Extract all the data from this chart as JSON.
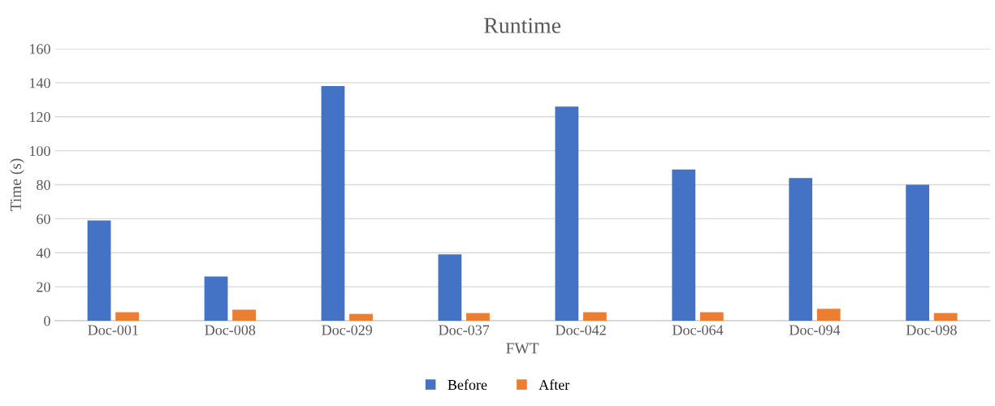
{
  "chart_data": {
    "type": "bar",
    "title": "Runtime",
    "xlabel": "FWT",
    "ylabel": "Time (s)",
    "categories": [
      "Doc-001",
      "Doc-008",
      "Doc-029",
      "Doc-037",
      "Doc-042",
      "Doc-064",
      "Doc-094",
      "Doc-098"
    ],
    "series": [
      {
        "name": "Before",
        "color": "#4472c4",
        "values": [
          59,
          26,
          138,
          39,
          126,
          89,
          84,
          80
        ]
      },
      {
        "name": "After",
        "color": "#ed7d31",
        "values": [
          5,
          6.5,
          4,
          4.5,
          5,
          5,
          7,
          4.5
        ]
      }
    ],
    "ylim": [
      0,
      160
    ],
    "yticks": [
      0,
      20,
      40,
      60,
      80,
      100,
      120,
      140,
      160
    ],
    "grid": "y",
    "legend": "bottom"
  }
}
